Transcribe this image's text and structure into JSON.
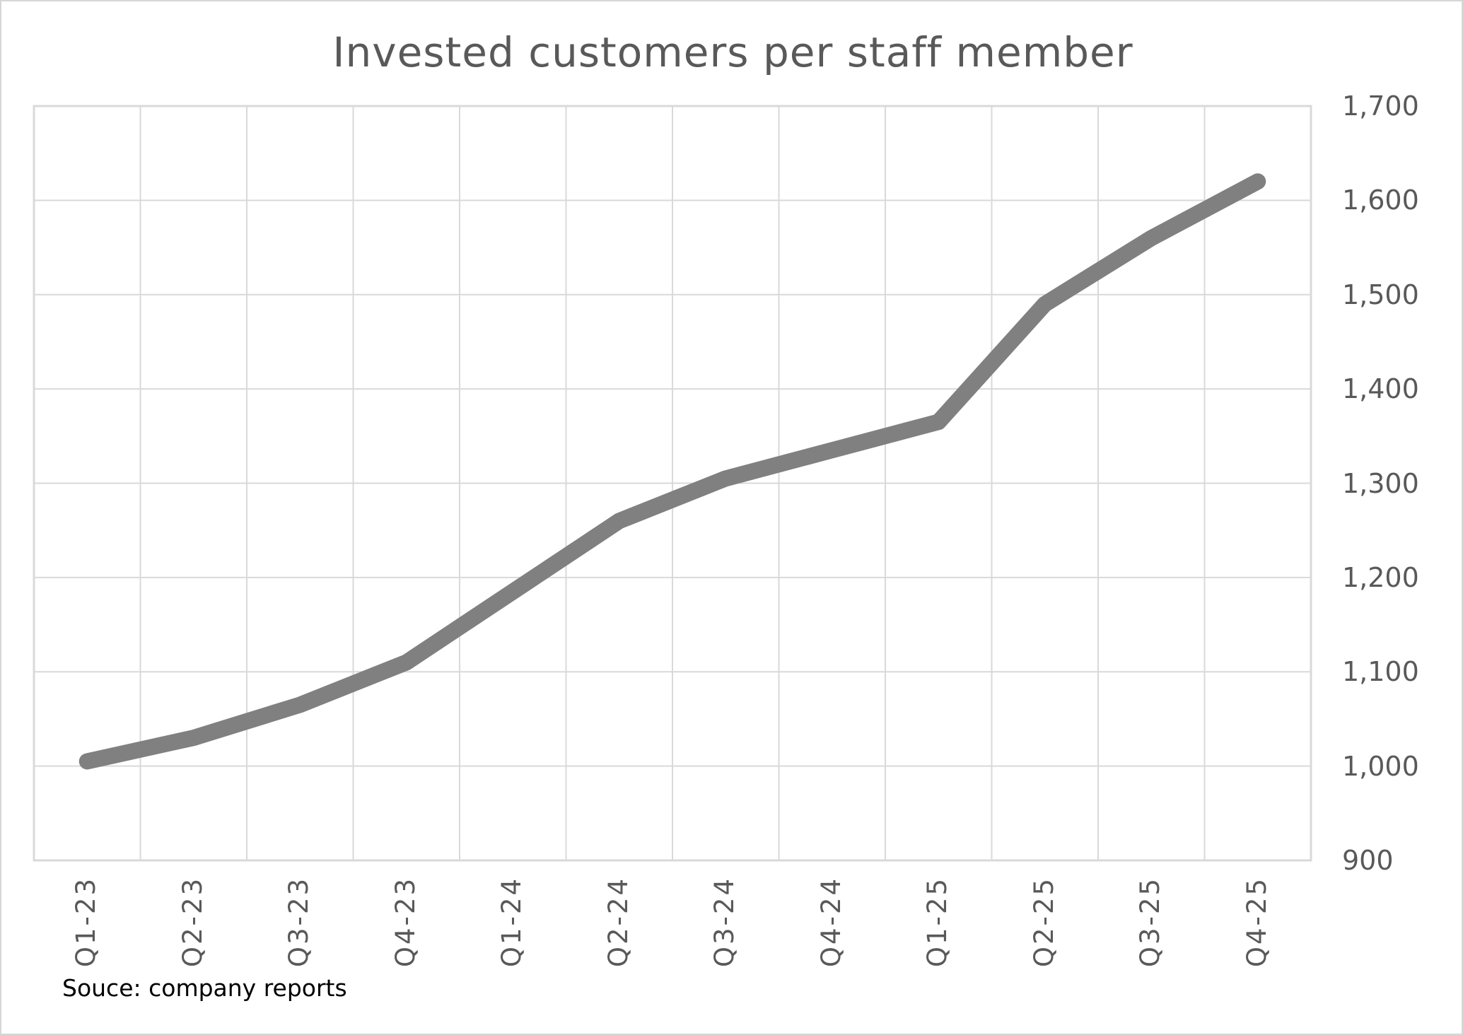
{
  "title": "Invested customers per staff member",
  "colors": {
    "line": "#808080",
    "grid": "#d9d9d9",
    "plot_border": "#d9d9d9",
    "axis_text": "#595959",
    "title_text": "#595959",
    "source_text": "#000000"
  },
  "chart_data": {
    "type": "line",
    "title": "Invested customers per staff member",
    "categories": [
      "Q1-23",
      "Q2-23",
      "Q3-23",
      "Q4-23",
      "Q1-24",
      "Q2-24",
      "Q3-24",
      "Q4-24",
      "Q1-25",
      "Q2-25",
      "Q3-25",
      "Q4-25"
    ],
    "values": [
      1005,
      1030,
      1065,
      1110,
      1185,
      1260,
      1305,
      1335,
      1365,
      1490,
      1560,
      1620
    ],
    "ylim": [
      900,
      1700
    ],
    "y_tick_step": 100,
    "y_tick_values": [
      900,
      1000,
      1100,
      1200,
      1300,
      1400,
      1500,
      1600,
      1700
    ],
    "y_tick_labels": [
      "900",
      "1,000",
      "1,100",
      "1,200",
      "1,300",
      "1,400",
      "1,500",
      "1,600",
      "1,700"
    ],
    "y_axis_side": "right",
    "x_label_rotation_deg": 90,
    "grid": true,
    "legend": "none",
    "source": "Souce: company reports"
  }
}
